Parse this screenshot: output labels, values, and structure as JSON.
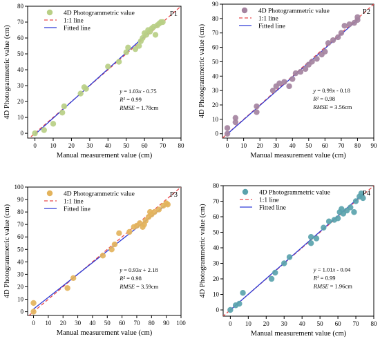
{
  "chart_data": [
    {
      "type": "scatter",
      "panel_label": "P1",
      "xlabel": "Manual measurement value (cm)",
      "ylabel": "4D Photogrammetric value (cm)",
      "xlim": [
        -4,
        80
      ],
      "ylim": [
        -3,
        80
      ],
      "xticks": [
        0,
        10,
        20,
        30,
        40,
        50,
        60,
        70,
        80
      ],
      "yticks": [
        0,
        10,
        20,
        30,
        40,
        50,
        60,
        70,
        80
      ],
      "legend": {
        "placement": "top-left",
        "entries": [
          "4D Photogrammetric value",
          "1:1 line",
          "Fitted line"
        ]
      },
      "point_color": "#b9cf85",
      "equation_lines": [
        "y = 1.03x - 0.75",
        "R² = 0.99",
        "RMSE = 1.78cm"
      ],
      "fit": {
        "slope": 1.03,
        "intercept": -0.75
      },
      "series": [
        {
          "name": "4D Photogrammetric value",
          "points": [
            [
              0,
              0
            ],
            [
              5,
              2
            ],
            [
              10,
              6
            ],
            [
              15,
              13
            ],
            [
              16,
              17
            ],
            [
              25,
              25
            ],
            [
              27,
              29
            ],
            [
              28,
              28
            ],
            [
              40,
              42
            ],
            [
              46,
              45
            ],
            [
              50,
              51
            ],
            [
              51,
              54
            ],
            [
              55,
              53
            ],
            [
              57,
              55
            ],
            [
              58,
              58
            ],
            [
              59,
              60
            ],
            [
              60,
              63
            ],
            [
              61,
              62
            ],
            [
              62,
              65
            ],
            [
              63,
              64
            ],
            [
              64,
              66
            ],
            [
              65,
              67
            ],
            [
              66,
              62
            ],
            [
              67,
              68
            ],
            [
              68,
              69
            ],
            [
              69,
              70
            ],
            [
              70,
              70
            ]
          ]
        }
      ]
    },
    {
      "type": "scatter",
      "panel_label": "P2",
      "xlabel": "Manual measurement value (cm)",
      "ylabel": "4D Photogrammetric value (cm)",
      "xlim": [
        -3,
        90
      ],
      "ylim": [
        -3,
        90
      ],
      "xticks": [
        0,
        10,
        20,
        30,
        40,
        50,
        60,
        70,
        80,
        90
      ],
      "yticks": [
        0,
        10,
        20,
        30,
        40,
        50,
        60,
        70,
        80,
        90
      ],
      "legend": {
        "placement": "top-left",
        "entries": [
          "4D Photogrammetric value",
          "1:1 line",
          "Fitted line"
        ]
      },
      "point_color": "#a4839f",
      "equation_lines": [
        "y = 0.99x - 0.18",
        "R² = 0.98",
        "RMSE = 3.56cm"
      ],
      "fit": {
        "slope": 0.99,
        "intercept": -0.18
      },
      "series": [
        {
          "name": "4D Photogrammetric value",
          "points": [
            [
              0,
              0
            ],
            [
              0,
              4
            ],
            [
              5,
              8
            ],
            [
              5,
              11
            ],
            [
              18,
              15
            ],
            [
              18,
              19
            ],
            [
              28,
              30
            ],
            [
              30,
              33
            ],
            [
              32,
              35
            ],
            [
              35,
              36
            ],
            [
              38,
              33
            ],
            [
              40,
              38
            ],
            [
              42,
              42
            ],
            [
              45,
              43
            ],
            [
              48,
              45
            ],
            [
              50,
              48
            ],
            [
              52,
              50
            ],
            [
              55,
              52
            ],
            [
              58,
              55
            ],
            [
              60,
              57
            ],
            [
              62,
              63
            ],
            [
              65,
              65
            ],
            [
              68,
              67
            ],
            [
              70,
              70
            ],
            [
              72,
              75
            ],
            [
              75,
              76
            ],
            [
              78,
              77
            ],
            [
              80,
              79
            ],
            [
              80,
              81
            ]
          ]
        }
      ]
    },
    {
      "type": "scatter",
      "panel_label": "P3",
      "xlabel": "Manual measurement value (cm)",
      "ylabel": "4D Photogrammetric value (cm)",
      "xlim": [
        -4,
        100
      ],
      "ylim": [
        -3,
        100
      ],
      "xticks": [
        0,
        10,
        20,
        30,
        40,
        50,
        60,
        70,
        80,
        90,
        100
      ],
      "yticks": [
        0,
        10,
        20,
        30,
        40,
        50,
        60,
        70,
        80,
        90,
        100
      ],
      "legend": {
        "placement": "top-left",
        "entries": [
          "4D Photogrammetric value",
          "1:1 line",
          "Fitted line"
        ]
      },
      "point_color": "#e3b35c",
      "equation_lines": [
        "y = 0.93x + 2.18",
        "R² = 0.98",
        "RMSE = 3.59cm"
      ],
      "fit": {
        "slope": 0.93,
        "intercept": 2.18
      },
      "series": [
        {
          "name": "4D Photogrammetric value",
          "points": [
            [
              0,
              0
            ],
            [
              0,
              7
            ],
            [
              23,
              19
            ],
            [
              27,
              27
            ],
            [
              47,
              45
            ],
            [
              53,
              50
            ],
            [
              55,
              54
            ],
            [
              58,
              63
            ],
            [
              65,
              64
            ],
            [
              68,
              68
            ],
            [
              70,
              69
            ],
            [
              72,
              71
            ],
            [
              74,
              68
            ],
            [
              75,
              70
            ],
            [
              76,
              73
            ],
            [
              78,
              76
            ],
            [
              79,
              80
            ],
            [
              80,
              78
            ],
            [
              82,
              80
            ],
            [
              85,
              82
            ],
            [
              88,
              85
            ],
            [
              90,
              87
            ],
            [
              91,
              86
            ]
          ]
        }
      ]
    },
    {
      "type": "scatter",
      "panel_label": "P4",
      "xlabel": "Manual measurement value (cm)",
      "ylabel": "4D Photogrammetric value (cm)",
      "xlim": [
        -4,
        80
      ],
      "ylim": [
        -4,
        80
      ],
      "xticks": [
        0,
        10,
        20,
        30,
        40,
        50,
        60,
        70,
        80
      ],
      "yticks": [
        0,
        10,
        20,
        30,
        40,
        50,
        60,
        70,
        80
      ],
      "legend": {
        "placement": "top-left",
        "entries": [
          "4D Photogrammetric value",
          "1:1 line",
          "Fitted line"
        ]
      },
      "point_color": "#5aa3ad",
      "equation_lines": [
        "y = 1.01x - 0.04",
        "R² = 0.99",
        "RMSE = 1.96cm"
      ],
      "fit": {
        "slope": 1.01,
        "intercept": -0.04
      },
      "series": [
        {
          "name": "4D Photogrammetric value",
          "points": [
            [
              0,
              0
            ],
            [
              3,
              3
            ],
            [
              5,
              4
            ],
            [
              7,
              11
            ],
            [
              23,
              20
            ],
            [
              25,
              24
            ],
            [
              30,
              30
            ],
            [
              33,
              34
            ],
            [
              45,
              43
            ],
            [
              45,
              47
            ],
            [
              48,
              46
            ],
            [
              52,
              53
            ],
            [
              55,
              57
            ],
            [
              58,
              58
            ],
            [
              60,
              59
            ],
            [
              61,
              63
            ],
            [
              62,
              65
            ],
            [
              63,
              62
            ],
            [
              65,
              64
            ],
            [
              67,
              66
            ],
            [
              69,
              63
            ],
            [
              70,
              70
            ],
            [
              72,
              73
            ],
            [
              73,
              75
            ],
            [
              74,
              72
            ]
          ]
        }
      ]
    }
  ],
  "style": {
    "line_1to1_color": "#e8484a",
    "fitted_line_color": "#2e3bd6",
    "axis_color": "#000000"
  }
}
